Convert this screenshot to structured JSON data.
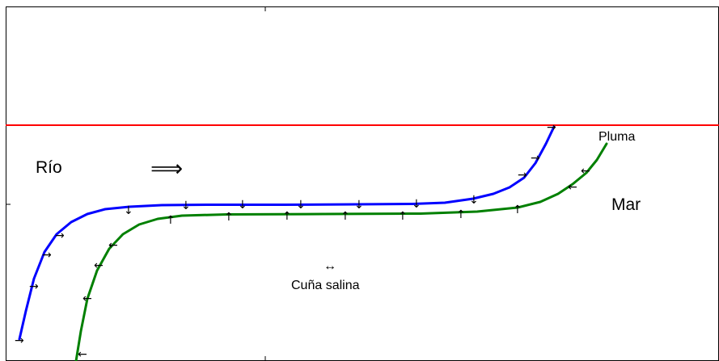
{
  "labels": {
    "river": "Río",
    "flow_arrow": "⟹",
    "plume": "Pluma",
    "sea": "Mar",
    "wedge_arrow": "↔",
    "wedge": "Cuña salina"
  },
  "colors": {
    "surface_line": "#ff0000",
    "river_curve": "#0000ff",
    "wedge_curve": "#007700",
    "frame": "#000000"
  }
}
